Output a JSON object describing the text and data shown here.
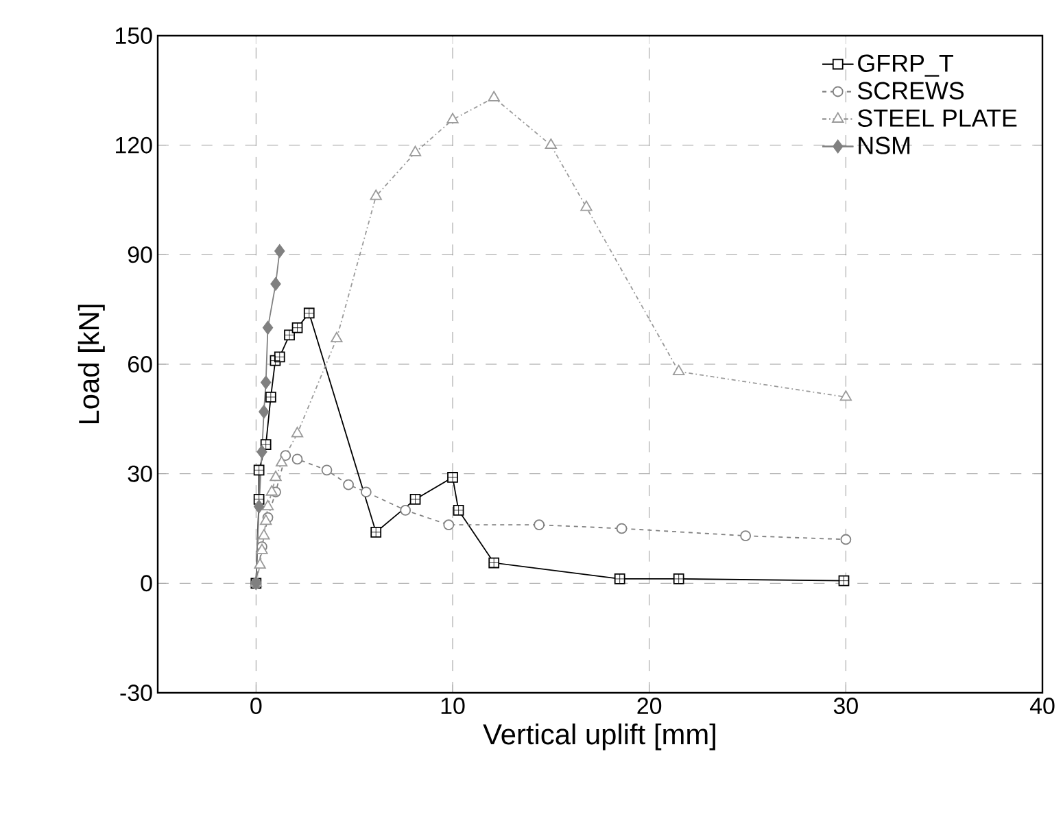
{
  "chart_data": {
    "type": "line",
    "xlabel": "Vertical uplift [mm]",
    "ylabel": "Load [kN]",
    "xlim": [
      -5,
      40
    ],
    "ylim": [
      -30,
      150
    ],
    "xticks": [
      0,
      10,
      20,
      30,
      40
    ],
    "yticks": [
      -30,
      0,
      30,
      60,
      90,
      120,
      150
    ],
    "grid": true,
    "legend": "top right",
    "series": [
      {
        "name": "GFRP_T",
        "color": "#000000",
        "marker": "square",
        "line_style": "solid",
        "x": [
          0,
          0.15,
          0.15,
          0.5,
          0.75,
          0.98,
          1.2,
          1.7,
          2.1,
          2.7,
          6.1,
          8.1,
          10.0,
          10.3,
          12.1,
          18.5,
          21.5,
          29.9
        ],
        "values": [
          0,
          23,
          31,
          38,
          51,
          61,
          62,
          68,
          70,
          74,
          14,
          23,
          29,
          20,
          5.6,
          1.2,
          1.2,
          0.7
        ]
      },
      {
        "name": "SCREWS",
        "color": "#808080",
        "marker": "circle",
        "line_style": "dashed",
        "x": [
          0,
          0.3,
          0.6,
          1.0,
          1.5,
          2.1,
          3.6,
          4.7,
          5.6,
          7.6,
          9.8,
          14.4,
          18.6,
          24.9,
          30
        ],
        "values": [
          0,
          10,
          18,
          25,
          35,
          34,
          31,
          27,
          25,
          20,
          16,
          16,
          15,
          13,
          12
        ]
      },
      {
        "name": "STEEL PLATE",
        "color": "#9a9a9a",
        "marker": "triangle",
        "line_style": "dotted",
        "x": [
          0,
          0.2,
          0.3,
          0.4,
          0.5,
          0.6,
          0.8,
          1.0,
          1.3,
          2.1,
          4.1,
          6.1,
          8.1,
          10.0,
          12.1,
          15.0,
          16.8,
          21.5,
          30
        ],
        "values": [
          0,
          5,
          9,
          13,
          17,
          21,
          25,
          29,
          33,
          41,
          67,
          106,
          118,
          127,
          133,
          120,
          103,
          58,
          51
        ]
      },
      {
        "name": "NSM",
        "color": "#808080",
        "marker": "diamond",
        "line_style": "solid",
        "x": [
          0,
          0.15,
          0.3,
          0.4,
          0.5,
          0.6,
          1.0,
          1.2
        ],
        "values": [
          0,
          21,
          36,
          47,
          55,
          70,
          82,
          91
        ]
      }
    ]
  }
}
